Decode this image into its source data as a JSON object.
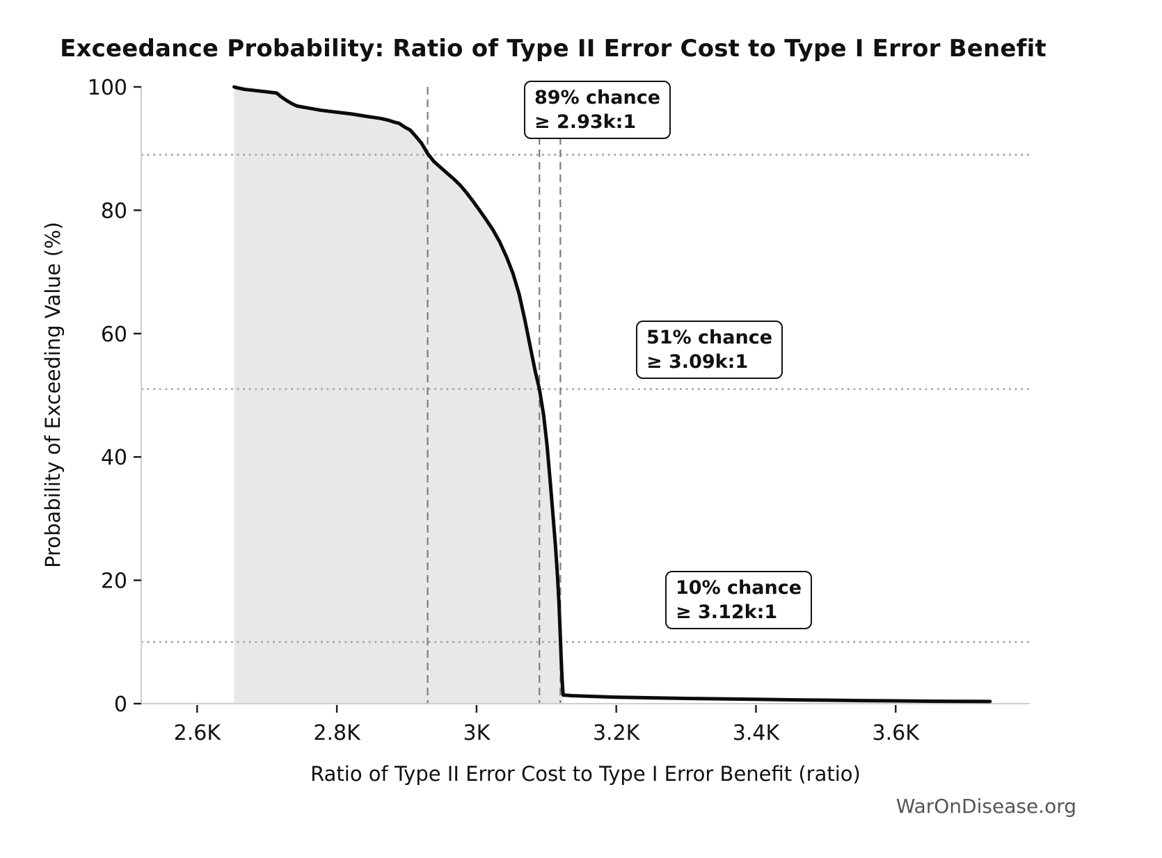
{
  "chart_data": {
    "type": "line",
    "title": "Exceedance Probability: Ratio of Type II Error Cost to Type I Error Benefit",
    "xlabel": "Ratio of Type II Error Cost to Type I Error Benefit (ratio)",
    "ylabel": "Probability of Exceeding Value (%)",
    "watermark": "WarOnDisease.org",
    "xlim": [
      2520,
      3792
    ],
    "ylim": [
      0,
      100
    ],
    "grid": "reference lines only",
    "legend": "none",
    "x_ticks": {
      "values": [
        2600,
        2800,
        3000,
        3200,
        3400,
        3600
      ],
      "labels": [
        "2.6K",
        "2.8K",
        "3K",
        "3.2K",
        "3.4K",
        "3.6K"
      ]
    },
    "y_ticks": {
      "values": [
        0,
        20,
        40,
        60,
        80,
        100
      ],
      "labels": [
        "0",
        "20",
        "40",
        "60",
        "80",
        "100"
      ]
    },
    "series": [
      {
        "name": "exceedance-curve",
        "color": "#0b0b0b",
        "fill_color": "#e8e8e8",
        "fill_range": [
          2653,
          3124
        ],
        "points": [
          [
            2653,
            100
          ],
          [
            2656,
            99.9
          ],
          [
            2668,
            99.6
          ],
          [
            2684,
            99.4
          ],
          [
            2700,
            99.2
          ],
          [
            2714,
            99.0
          ],
          [
            2719,
            98.5
          ],
          [
            2728,
            97.8
          ],
          [
            2737,
            97.2
          ],
          [
            2743,
            96.9
          ],
          [
            2758,
            96.6
          ],
          [
            2778,
            96.2
          ],
          [
            2800,
            95.9
          ],
          [
            2822,
            95.6
          ],
          [
            2844,
            95.2
          ],
          [
            2862,
            94.9
          ],
          [
            2874,
            94.6
          ],
          [
            2882,
            94.3
          ],
          [
            2889,
            94.1
          ],
          [
            2897,
            93.5
          ],
          [
            2905,
            93.0
          ],
          [
            2913,
            92.0
          ],
          [
            2921,
            90.9
          ],
          [
            2930,
            89.2
          ],
          [
            2939,
            87.9
          ],
          [
            2949,
            86.9
          ],
          [
            2959,
            85.9
          ],
          [
            2968,
            85.0
          ],
          [
            2977,
            84.0
          ],
          [
            2986,
            82.8
          ],
          [
            2994,
            81.6
          ],
          [
            3003,
            80.2
          ],
          [
            3013,
            78.6
          ],
          [
            3023,
            76.9
          ],
          [
            3033,
            74.9
          ],
          [
            3043,
            72.4
          ],
          [
            3052,
            69.8
          ],
          [
            3061,
            66.4
          ],
          [
            3069,
            62.3
          ],
          [
            3077,
            57.8
          ],
          [
            3084,
            53.9
          ],
          [
            3090,
            51.0
          ],
          [
            3096,
            46.8
          ],
          [
            3101,
            41.8
          ],
          [
            3106,
            35.3
          ],
          [
            3110,
            29.8
          ],
          [
            3113,
            25.6
          ],
          [
            3116,
            20.6
          ],
          [
            3118,
            16.2
          ],
          [
            3120,
            10.6
          ],
          [
            3121,
            7.6
          ],
          [
            3122,
            5.0
          ],
          [
            3123,
            2.8
          ],
          [
            3124,
            1.4
          ],
          [
            3136,
            1.3
          ],
          [
            3160,
            1.2
          ],
          [
            3200,
            1.05
          ],
          [
            3250,
            0.95
          ],
          [
            3300,
            0.85
          ],
          [
            3350,
            0.78
          ],
          [
            3400,
            0.7
          ],
          [
            3450,
            0.62
          ],
          [
            3500,
            0.56
          ],
          [
            3550,
            0.5
          ],
          [
            3600,
            0.45
          ],
          [
            3650,
            0.4
          ],
          [
            3700,
            0.37
          ],
          [
            3735,
            0.35
          ]
        ]
      }
    ],
    "reference_lines": {
      "vertical_ratios": [
        2930,
        3090,
        3120
      ],
      "horizontal_percents": [
        89,
        51,
        10
      ]
    },
    "annotations": [
      {
        "lines": [
          "89% chance",
          "≥ 2.93k:1"
        ],
        "percent": 89,
        "ratio": 2930
      },
      {
        "lines": [
          "51% chance",
          "≥ 3.09k:1"
        ],
        "percent": 51,
        "ratio": 3090
      },
      {
        "lines": [
          "10% chance",
          "≥ 3.12k:1"
        ],
        "percent": 10,
        "ratio": 3120
      }
    ],
    "colors": {
      "curve": "#0b0b0b",
      "fill": "#e8e8e8",
      "spine": "#cfcfcf",
      "tick": "#1a1a1a",
      "dashed_vline": "#7d7d7d",
      "dotted_hline": "#a8a8a8",
      "annotation_border": "#111111",
      "watermark": "#555555"
    }
  }
}
